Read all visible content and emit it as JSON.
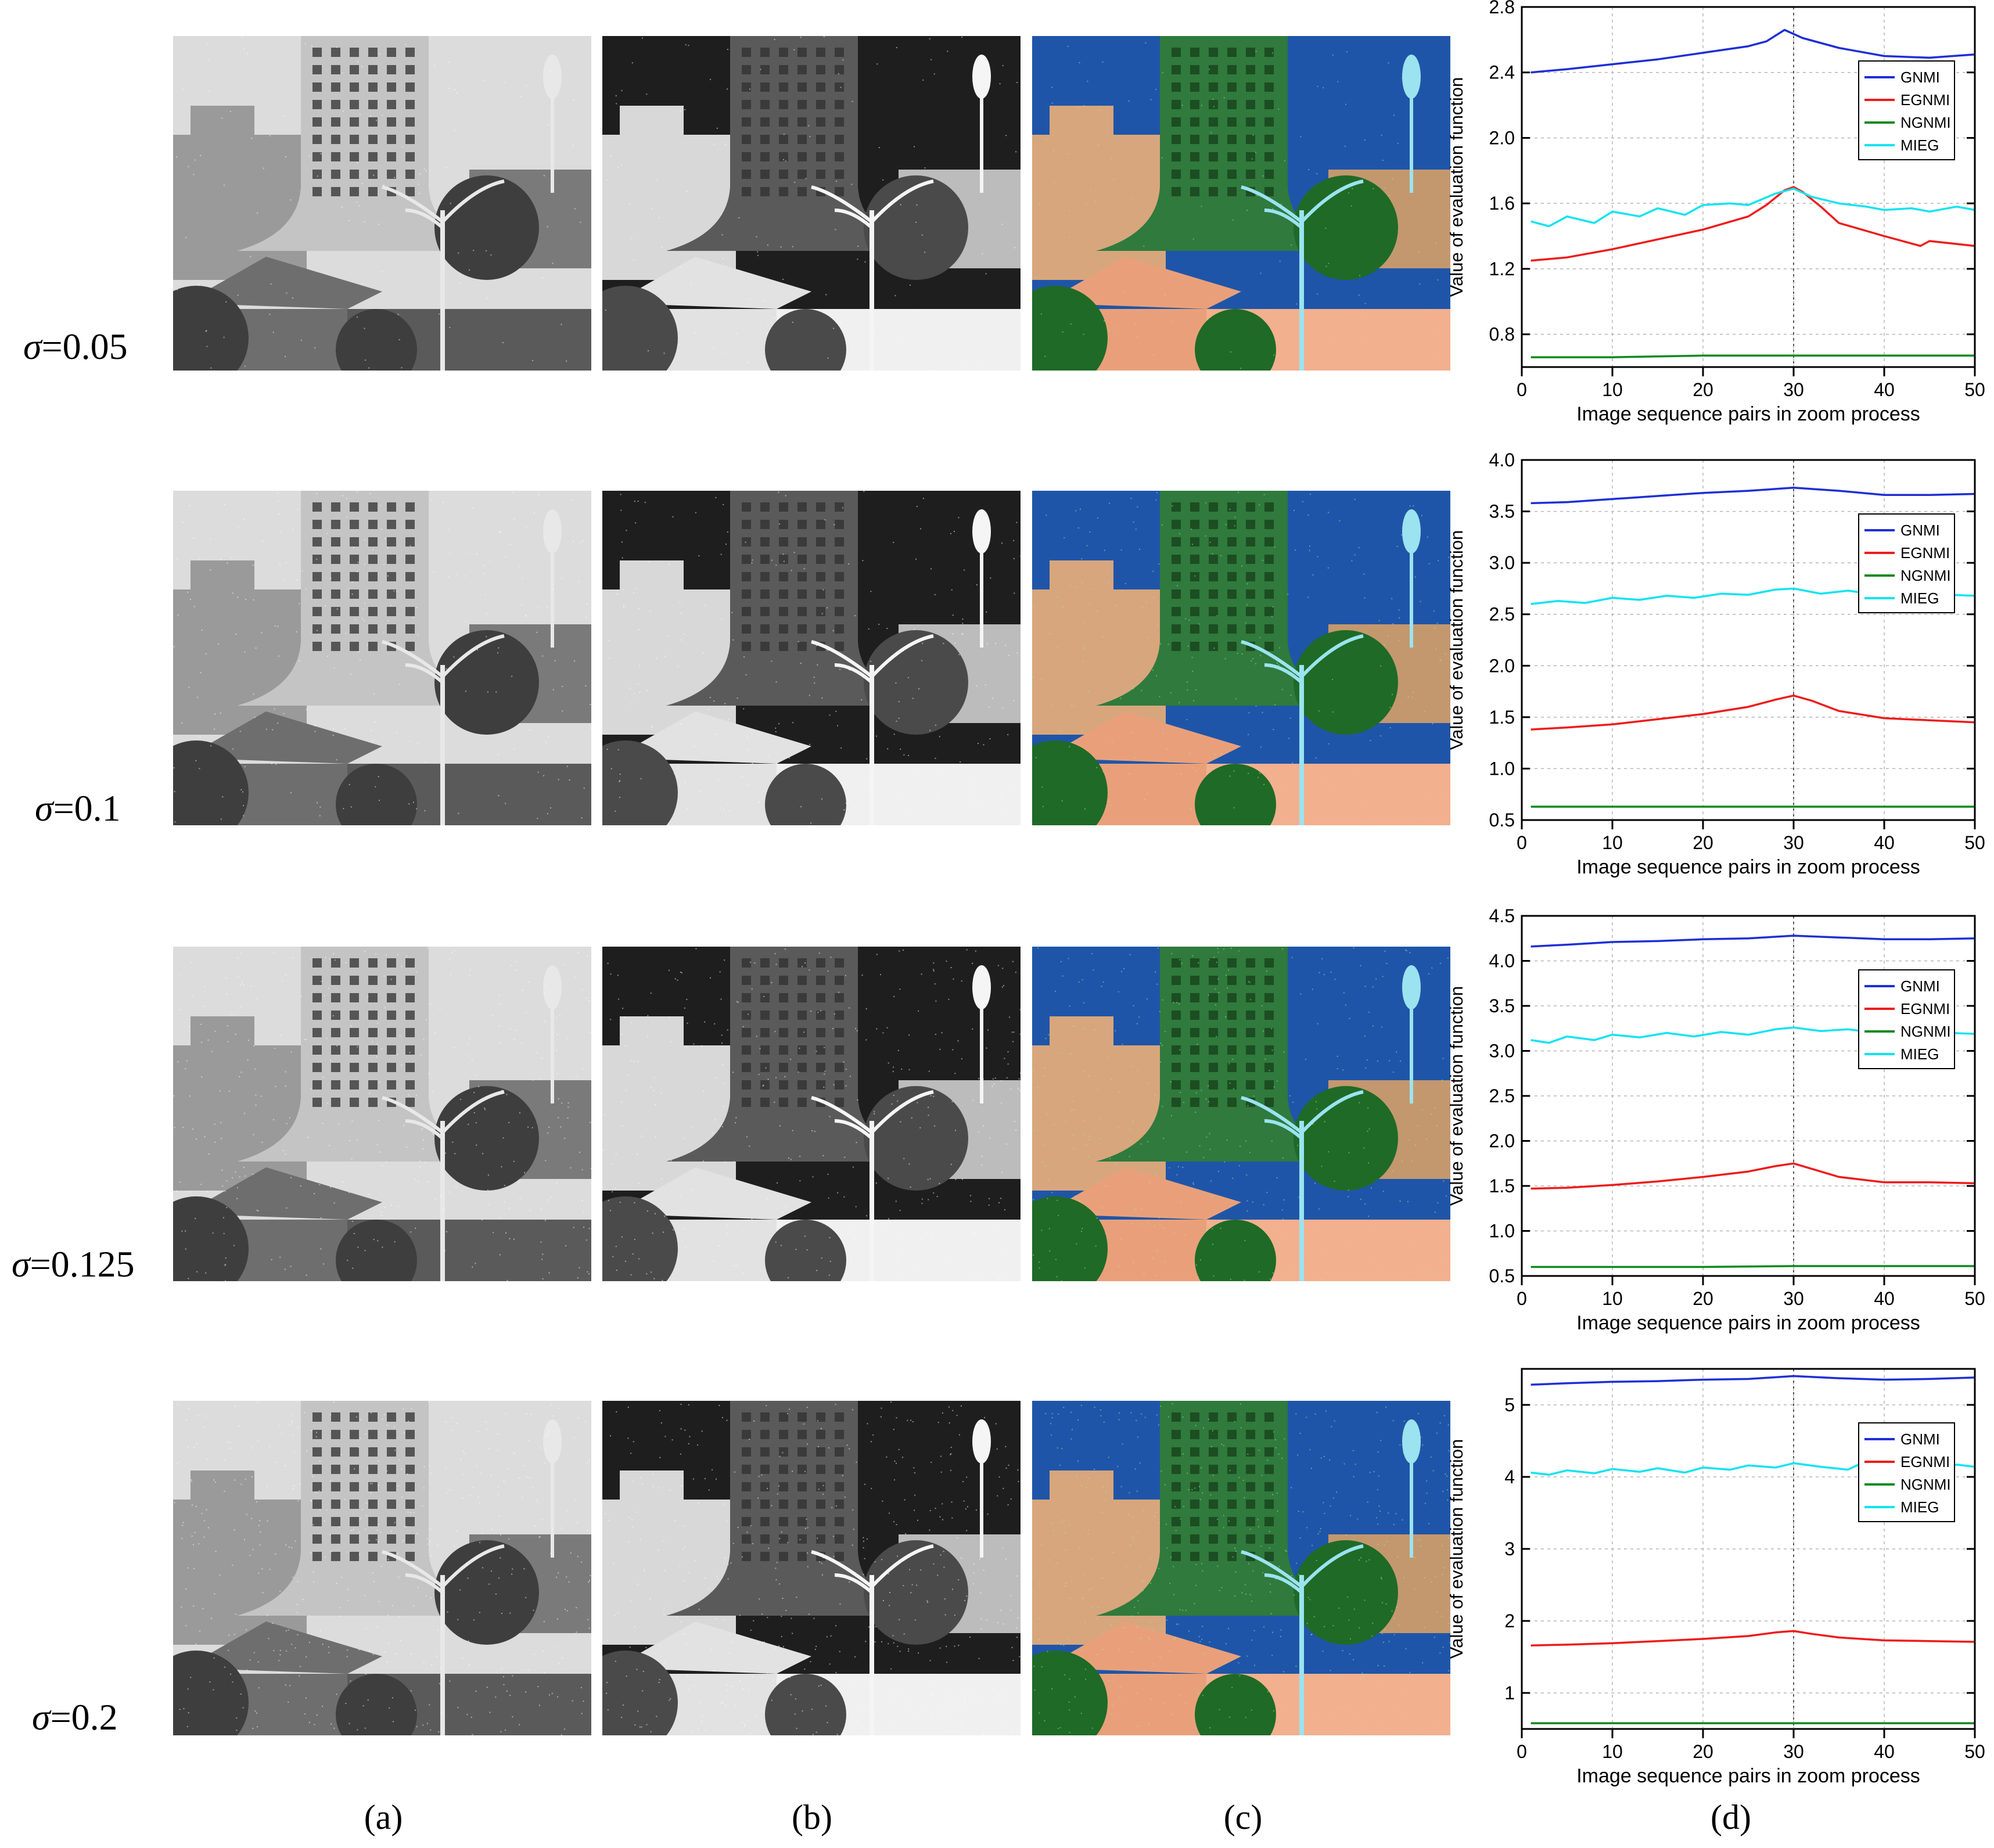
{
  "row_labels": [
    {
      "symbol": "σ",
      "value": "=0.05"
    },
    {
      "symbol": "σ",
      "value": "=0.1"
    },
    {
      "symbol": "σ",
      "value": "=0.125"
    },
    {
      "symbol": "σ",
      "value": "=0.2"
    }
  ],
  "column_labels": [
    "(a)",
    "(b)",
    "(c)",
    "(d)"
  ],
  "image_panels": {
    "a": "grayscale noisy visible image of campus building with curved tower, street lamp and tiled roof",
    "b": "infrared image of the same scene",
    "c": "pseudo-color fused image (blue sky, green building, orange roof)"
  },
  "colors": {
    "GNMI": "#1f2fd6",
    "EGNMI": "#ee1c1c",
    "NGNMI": "#0f8a1f",
    "MIEG": "#13e3f0"
  },
  "chart_data": [
    {
      "type": "line",
      "title": "σ=0.05",
      "xlabel": "Image sequence pairs in zoom process",
      "ylabel": "Value of evaluation function",
      "xlim": [
        0,
        50
      ],
      "ylim": [
        0.6,
        2.8
      ],
      "xticks": [
        0,
        10,
        20,
        30,
        40,
        50
      ],
      "yticks": [
        0.8,
        1.2,
        1.6,
        2.0,
        2.4,
        2.8
      ],
      "ytick_labels": [
        "0.8",
        "1.2",
        "1.6",
        "2.0",
        "2.4",
        "2.8"
      ],
      "marker_line_x": 30,
      "legend": [
        "GNMI",
        "EGNMI",
        "NGNMI",
        "MIEG"
      ],
      "legend_position": "right",
      "series": [
        {
          "name": "GNMI",
          "x": [
            1,
            5,
            10,
            15,
            20,
            25,
            27,
            29,
            31,
            33,
            35,
            40,
            45,
            50
          ],
          "values": [
            2.4,
            2.42,
            2.45,
            2.48,
            2.52,
            2.56,
            2.59,
            2.66,
            2.61,
            2.58,
            2.55,
            2.5,
            2.49,
            2.51
          ]
        },
        {
          "name": "EGNMI",
          "x": [
            1,
            5,
            10,
            15,
            20,
            25,
            27,
            29,
            30,
            31,
            33,
            35,
            40,
            44,
            45,
            50
          ],
          "values": [
            1.25,
            1.27,
            1.32,
            1.38,
            1.44,
            1.52,
            1.59,
            1.68,
            1.7,
            1.67,
            1.58,
            1.48,
            1.4,
            1.34,
            1.37,
            1.34
          ]
        },
        {
          "name": "NGNMI",
          "x": [
            1,
            10,
            20,
            30,
            40,
            50
          ],
          "values": [
            0.66,
            0.66,
            0.67,
            0.67,
            0.67,
            0.67
          ]
        },
        {
          "name": "MIEG",
          "x": [
            1,
            3,
            5,
            8,
            10,
            13,
            15,
            18,
            20,
            23,
            25,
            28,
            30,
            32,
            35,
            38,
            40,
            43,
            45,
            48,
            50
          ],
          "values": [
            1.49,
            1.46,
            1.52,
            1.48,
            1.55,
            1.52,
            1.57,
            1.53,
            1.59,
            1.6,
            1.59,
            1.66,
            1.69,
            1.64,
            1.6,
            1.58,
            1.56,
            1.57,
            1.55,
            1.58,
            1.56
          ]
        }
      ]
    },
    {
      "type": "line",
      "title": "σ=0.1",
      "xlabel": "Image sequence pairs in zoom process",
      "ylabel": "Value of evaluation function",
      "xlim": [
        0,
        50
      ],
      "ylim": [
        0.5,
        4.0
      ],
      "xticks": [
        0,
        10,
        20,
        30,
        40,
        50
      ],
      "yticks": [
        0.5,
        1.0,
        1.5,
        2.0,
        2.5,
        3.0,
        3.5,
        4.0
      ],
      "ytick_labels": [
        "0.5",
        "1.0",
        "1.5",
        "2.0",
        "2.5",
        "3.0",
        "3.5",
        "4.0"
      ],
      "marker_line_x": 30,
      "legend": [
        "GNMI",
        "EGNMI",
        "NGNMI",
        "MIEG"
      ],
      "legend_position": "right",
      "series": [
        {
          "name": "GNMI",
          "x": [
            1,
            5,
            10,
            15,
            20,
            25,
            30,
            35,
            40,
            45,
            50
          ],
          "values": [
            3.58,
            3.59,
            3.62,
            3.65,
            3.68,
            3.7,
            3.73,
            3.7,
            3.66,
            3.66,
            3.67
          ]
        },
        {
          "name": "EGNMI",
          "x": [
            1,
            5,
            10,
            15,
            20,
            25,
            28,
            30,
            32,
            35,
            40,
            45,
            50
          ],
          "values": [
            1.38,
            1.4,
            1.43,
            1.48,
            1.53,
            1.6,
            1.67,
            1.71,
            1.66,
            1.56,
            1.49,
            1.47,
            1.45
          ]
        },
        {
          "name": "NGNMI",
          "x": [
            1,
            10,
            20,
            30,
            40,
            50
          ],
          "values": [
            0.63,
            0.63,
            0.63,
            0.63,
            0.63,
            0.63
          ]
        },
        {
          "name": "MIEG",
          "x": [
            1,
            4,
            7,
            10,
            13,
            16,
            19,
            22,
            25,
            28,
            30,
            33,
            36,
            40,
            44,
            47,
            50
          ],
          "values": [
            2.6,
            2.63,
            2.61,
            2.66,
            2.64,
            2.68,
            2.66,
            2.7,
            2.69,
            2.74,
            2.75,
            2.7,
            2.73,
            2.68,
            2.72,
            2.69,
            2.68
          ]
        }
      ]
    },
    {
      "type": "line",
      "title": "σ=0.125",
      "xlabel": "Image sequence pairs in zoom process",
      "ylabel": "Value of evaluation function",
      "xlim": [
        0,
        50
      ],
      "ylim": [
        0.5,
        4.5
      ],
      "xticks": [
        0,
        10,
        20,
        30,
        40,
        50
      ],
      "yticks": [
        0.5,
        1.0,
        1.5,
        2.0,
        2.5,
        3.0,
        3.5,
        4.0,
        4.5
      ],
      "ytick_labels": [
        "0.5",
        "1.0",
        "1.5",
        "2.0",
        "2.5",
        "3.0",
        "3.5",
        "4.0",
        "4.5"
      ],
      "marker_line_x": 30,
      "legend": [
        "GNMI",
        "EGNMI",
        "NGNMI",
        "MIEG"
      ],
      "legend_position": "right",
      "series": [
        {
          "name": "GNMI",
          "x": [
            1,
            5,
            10,
            15,
            20,
            25,
            30,
            35,
            40,
            45,
            50
          ],
          "values": [
            4.16,
            4.18,
            4.21,
            4.22,
            4.24,
            4.25,
            4.28,
            4.26,
            4.24,
            4.24,
            4.25
          ]
        },
        {
          "name": "EGNMI",
          "x": [
            1,
            5,
            10,
            15,
            20,
            25,
            28,
            30,
            32,
            35,
            40,
            45,
            50
          ],
          "values": [
            1.47,
            1.48,
            1.51,
            1.55,
            1.6,
            1.66,
            1.72,
            1.75,
            1.69,
            1.6,
            1.54,
            1.54,
            1.53
          ]
        },
        {
          "name": "NGNMI",
          "x": [
            1,
            10,
            20,
            30,
            40,
            50
          ],
          "values": [
            0.6,
            0.6,
            0.6,
            0.61,
            0.61,
            0.61
          ]
        },
        {
          "name": "MIEG",
          "x": [
            1,
            3,
            5,
            8,
            10,
            13,
            16,
            19,
            22,
            25,
            28,
            30,
            33,
            36,
            40,
            44,
            47,
            50
          ],
          "values": [
            3.12,
            3.09,
            3.16,
            3.12,
            3.18,
            3.15,
            3.2,
            3.16,
            3.21,
            3.18,
            3.24,
            3.26,
            3.22,
            3.24,
            3.19,
            3.23,
            3.2,
            3.19
          ]
        }
      ]
    },
    {
      "type": "line",
      "title": "σ=0.2",
      "xlabel": "Image sequence pairs in zoom process",
      "ylabel": "Value of evaluation function",
      "xlim": [
        0,
        50
      ],
      "ylim": [
        0.5,
        5.5
      ],
      "xticks": [
        0,
        10,
        20,
        30,
        40,
        50
      ],
      "yticks": [
        1,
        2,
        3,
        4,
        5
      ],
      "ytick_labels": [
        "1",
        "2",
        "3",
        "4",
        "5"
      ],
      "marker_line_x": 30,
      "legend": [
        "GNMI",
        "EGNMI",
        "NGNMI",
        "MIEG"
      ],
      "legend_position": "right",
      "series": [
        {
          "name": "GNMI",
          "x": [
            1,
            5,
            10,
            15,
            20,
            25,
            30,
            35,
            40,
            45,
            50
          ],
          "values": [
            5.28,
            5.3,
            5.32,
            5.33,
            5.35,
            5.36,
            5.4,
            5.37,
            5.35,
            5.36,
            5.38
          ]
        },
        {
          "name": "EGNMI",
          "x": [
            1,
            5,
            10,
            15,
            20,
            25,
            28,
            30,
            32,
            35,
            40,
            45,
            50
          ],
          "values": [
            1.66,
            1.67,
            1.69,
            1.72,
            1.75,
            1.79,
            1.84,
            1.86,
            1.82,
            1.77,
            1.73,
            1.72,
            1.71
          ]
        },
        {
          "name": "NGNMI",
          "x": [
            1,
            10,
            20,
            30,
            40,
            50
          ],
          "values": [
            0.58,
            0.58,
            0.58,
            0.58,
            0.58,
            0.58
          ]
        },
        {
          "name": "MIEG",
          "x": [
            1,
            3,
            5,
            8,
            10,
            13,
            15,
            18,
            20,
            23,
            25,
            28,
            30,
            33,
            36,
            38,
            40,
            43,
            46,
            48,
            50
          ],
          "values": [
            4.06,
            4.03,
            4.09,
            4.05,
            4.11,
            4.07,
            4.12,
            4.06,
            4.13,
            4.1,
            4.16,
            4.13,
            4.19,
            4.14,
            4.1,
            4.22,
            4.14,
            4.19,
            4.12,
            4.17,
            4.14
          ]
        }
      ]
    }
  ]
}
